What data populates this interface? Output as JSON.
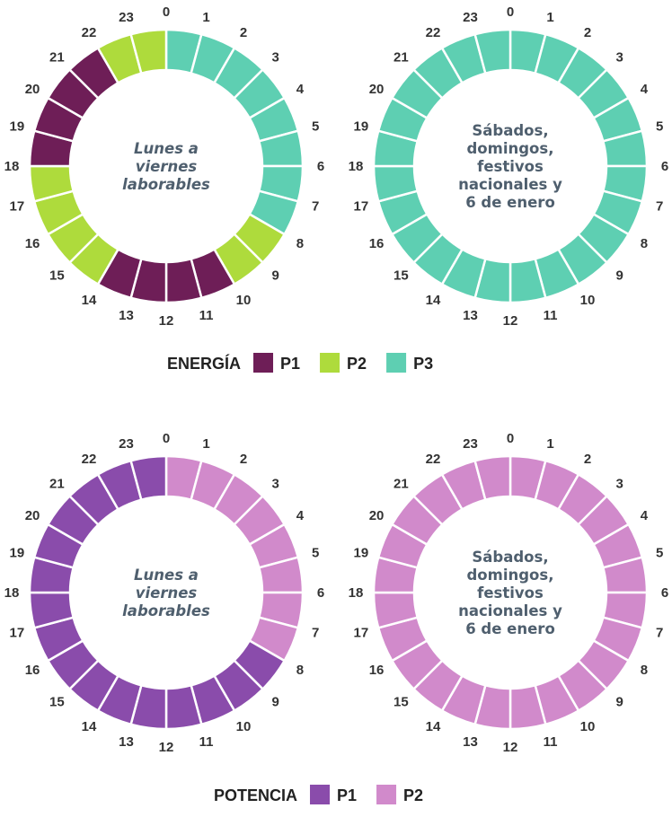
{
  "colors": {
    "energy_p1": "#6e1e57",
    "energy_p2": "#aedb3c",
    "energy_p3": "#5ecfb2",
    "power_p1": "#8a4cab",
    "power_p2": "#d18acb"
  },
  "hours": [
    "0",
    "1",
    "2",
    "3",
    "4",
    "5",
    "6",
    "7",
    "8",
    "9",
    "10",
    "11",
    "12",
    "13",
    "14",
    "15",
    "16",
    "17",
    "18",
    "19",
    "20",
    "21",
    "22",
    "23"
  ],
  "sections": [
    {
      "id": "energia",
      "legend": {
        "title": "ENERGÍA",
        "items": [
          {
            "label": "P1",
            "color": "#6e1e57"
          },
          {
            "label": "P2",
            "color": "#aedb3c"
          },
          {
            "label": "P3",
            "color": "#5ecfb2"
          }
        ]
      },
      "rings": [
        {
          "center_text": [
            "Lunes a",
            "viernes",
            "laborables"
          ],
          "italic": true,
          "periods": [
            "P3",
            "P3",
            "P3",
            "P3",
            "P3",
            "P3",
            "P3",
            "P3",
            "P2",
            "P2",
            "P1",
            "P1",
            "P1",
            "P1",
            "P2",
            "P2",
            "P2",
            "P2",
            "P1",
            "P1",
            "P1",
            "P1",
            "P2",
            "P2"
          ]
        },
        {
          "center_text": [
            "Sábados,",
            "domingos,",
            "festivos",
            "nacionales y",
            "6 de enero"
          ],
          "italic": false,
          "periods": [
            "P3",
            "P3",
            "P3",
            "P3",
            "P3",
            "P3",
            "P3",
            "P3",
            "P3",
            "P3",
            "P3",
            "P3",
            "P3",
            "P3",
            "P3",
            "P3",
            "P3",
            "P3",
            "P3",
            "P3",
            "P3",
            "P3",
            "P3",
            "P3"
          ]
        }
      ]
    },
    {
      "id": "potencia",
      "legend": {
        "title": "POTENCIA",
        "items": [
          {
            "label": "P1",
            "color": "#8a4cab"
          },
          {
            "label": "P2",
            "color": "#d18acb"
          }
        ]
      },
      "rings": [
        {
          "center_text": [
            "Lunes a",
            "viernes",
            "laborables"
          ],
          "italic": true,
          "periods": [
            "P2",
            "P2",
            "P2",
            "P2",
            "P2",
            "P2",
            "P2",
            "P2",
            "P1",
            "P1",
            "P1",
            "P1",
            "P1",
            "P1",
            "P1",
            "P1",
            "P1",
            "P1",
            "P1",
            "P1",
            "P1",
            "P1",
            "P1",
            "P1"
          ]
        },
        {
          "center_text": [
            "Sábados,",
            "domingos,",
            "festivos",
            "nacionales y",
            "6 de enero"
          ],
          "italic": false,
          "periods": [
            "P2",
            "P2",
            "P2",
            "P2",
            "P2",
            "P2",
            "P2",
            "P2",
            "P2",
            "P2",
            "P2",
            "P2",
            "P2",
            "P2",
            "P2",
            "P2",
            "P2",
            "P2",
            "P2",
            "P2",
            "P2",
            "P2",
            "P2",
            "P2"
          ]
        }
      ]
    }
  ]
}
